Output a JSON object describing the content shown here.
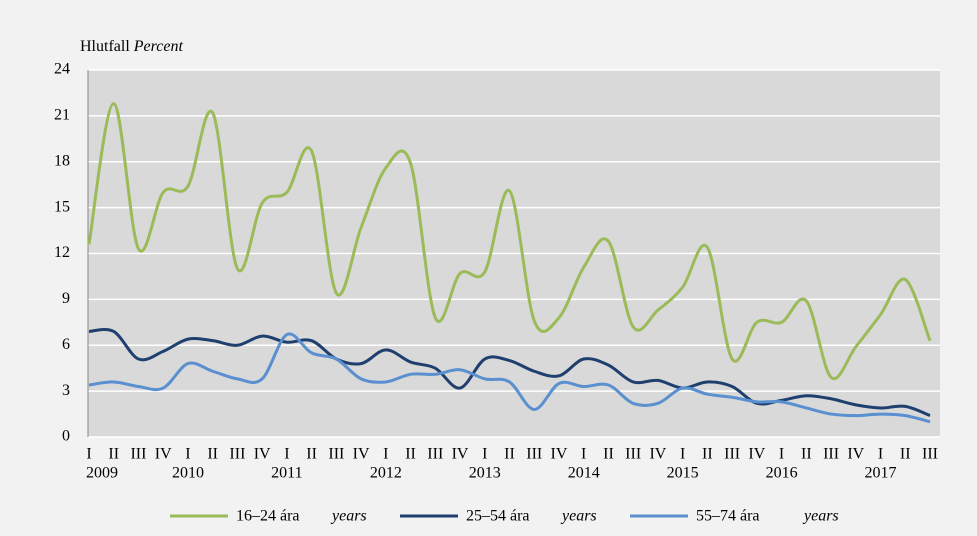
{
  "chart_data": {
    "type": "line",
    "y_label": "Hlutfall",
    "y_label_en": "Percent",
    "categories": [
      "I",
      "II",
      "III",
      "IV",
      "I",
      "II",
      "III",
      "IV",
      "I",
      "II",
      "III",
      "IV",
      "I",
      "II",
      "III",
      "IV",
      "I",
      "II",
      "III",
      "IV",
      "I",
      "II",
      "III",
      "IV",
      "I",
      "II",
      "III",
      "IV",
      "I",
      "II",
      "III",
      "IV",
      "I",
      "II",
      "III"
    ],
    "years": [
      "2009",
      "2010",
      "2011",
      "2012",
      "2013",
      "2014",
      "2015",
      "2016",
      "2017"
    ],
    "ylim": [
      0,
      24
    ],
    "yticks": [
      0,
      3,
      6,
      9,
      12,
      15,
      18,
      21,
      24
    ],
    "grid": true,
    "series": [
      {
        "name": "16–24 ára",
        "name_en": "years",
        "color": "#9bbb59",
        "values": [
          12.6,
          21.8,
          12.3,
          16.0,
          16.4,
          21.2,
          11.0,
          15.3,
          16.0,
          18.7,
          9.4,
          13.7,
          17.6,
          17.9,
          7.8,
          10.7,
          10.8,
          16.1,
          7.6,
          7.8,
          11.1,
          12.8,
          7.2,
          8.3,
          9.8,
          12.4,
          5.1,
          7.5,
          7.5,
          8.9,
          3.9,
          5.9,
          8.0,
          10.3,
          6.3
        ]
      },
      {
        "name": "25–54 ára",
        "name_en": "years",
        "color": "#1f3f6e",
        "values": [
          6.9,
          6.9,
          5.1,
          5.6,
          6.4,
          6.3,
          6.0,
          6.6,
          6.2,
          6.3,
          5.1,
          4.8,
          5.7,
          4.9,
          4.5,
          3.2,
          5.1,
          5.0,
          4.3,
          4.0,
          5.1,
          4.7,
          3.6,
          3.7,
          3.2,
          3.6,
          3.3,
          2.2,
          2.4,
          2.7,
          2.5,
          2.1,
          1.9,
          2.0,
          1.4
        ]
      },
      {
        "name": "55–74 ára",
        "name_en": "years",
        "color": "#5a8fd0",
        "values": [
          3.4,
          3.6,
          3.3,
          3.2,
          4.8,
          4.3,
          3.8,
          3.8,
          6.7,
          5.5,
          5.1,
          3.8,
          3.6,
          4.1,
          4.1,
          4.4,
          3.8,
          3.6,
          1.8,
          3.5,
          3.3,
          3.4,
          2.2,
          2.2,
          3.2,
          2.8,
          2.6,
          2.3,
          2.3,
          1.9,
          1.5,
          1.4,
          1.5,
          1.4,
          1.0
        ]
      }
    ]
  }
}
